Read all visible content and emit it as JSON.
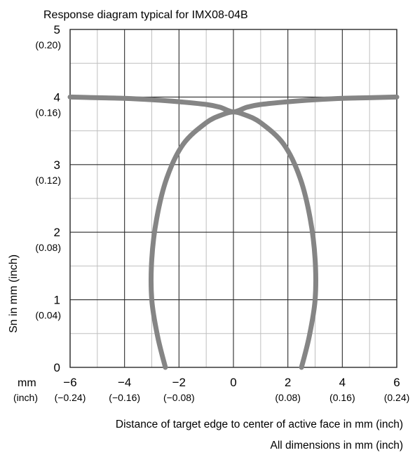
{
  "chart_data": {
    "type": "line",
    "title": "Response diagram typical for IMX08-04B",
    "ylabel": "Sn in mm (inch)",
    "xlabel": "Distance of target edge to center of active face in mm (inch)",
    "footnote": "All dimensions in mm (inch)",
    "x_unit_mm": "mm",
    "x_unit_inch": "(inch)",
    "xlim": [
      -6,
      6
    ],
    "ylim": [
      0,
      5
    ],
    "grid": true,
    "legend": "none",
    "line_color": "#858585",
    "grid_major_color": "#2b2b2b",
    "grid_minor_color": "#bfbfbf",
    "x_ticks": [
      {
        "value": -6,
        "mm": "−6",
        "inch": "(−0.24)"
      },
      {
        "value": -4,
        "mm": "−4",
        "inch": "(−0.16)"
      },
      {
        "value": -2,
        "mm": "−2",
        "inch": "(−0.08)"
      },
      {
        "value": 0,
        "mm": "0",
        "inch": ""
      },
      {
        "value": 2,
        "mm": "2",
        "inch": "(0.08)"
      },
      {
        "value": 4,
        "mm": "4",
        "inch": "(0.16)"
      },
      {
        "value": 6,
        "mm": "6",
        "inch": "(0.24)"
      }
    ],
    "y_ticks": [
      {
        "value": 0,
        "mm": "0",
        "inch": ""
      },
      {
        "value": 1,
        "mm": "1",
        "inch": "(0.04)"
      },
      {
        "value": 2,
        "mm": "2",
        "inch": "(0.08)"
      },
      {
        "value": 3,
        "mm": "3",
        "inch": "(0.12)"
      },
      {
        "value": 4,
        "mm": "4",
        "inch": "(0.16)"
      },
      {
        "value": 5,
        "mm": "5",
        "inch": "(0.20)"
      }
    ],
    "series": [
      {
        "x": [
          -6,
          -5,
          -4,
          -3,
          -2,
          -1,
          -0.5,
          0,
          0.5,
          1,
          2,
          3,
          4,
          5,
          6
        ],
        "y": [
          4.0,
          3.99,
          3.98,
          3.96,
          3.93,
          3.89,
          3.85,
          3.78,
          3.85,
          3.89,
          3.93,
          3.96,
          3.98,
          3.99,
          4.0
        ]
      },
      {
        "x": [
          -2.5,
          -2.78,
          -3.0,
          -3.0,
          -2.82,
          -2.45,
          -1.85,
          -1.0,
          -0.4,
          0,
          0.4,
          1.0,
          1.85,
          2.45,
          2.82,
          3.0,
          3.0,
          2.78,
          2.5
        ],
        "y": [
          0.0,
          0.45,
          1.0,
          1.6,
          2.2,
          2.8,
          3.3,
          3.62,
          3.74,
          3.78,
          3.74,
          3.62,
          3.3,
          2.8,
          2.2,
          1.6,
          1.0,
          0.45,
          0.0
        ]
      }
    ]
  }
}
